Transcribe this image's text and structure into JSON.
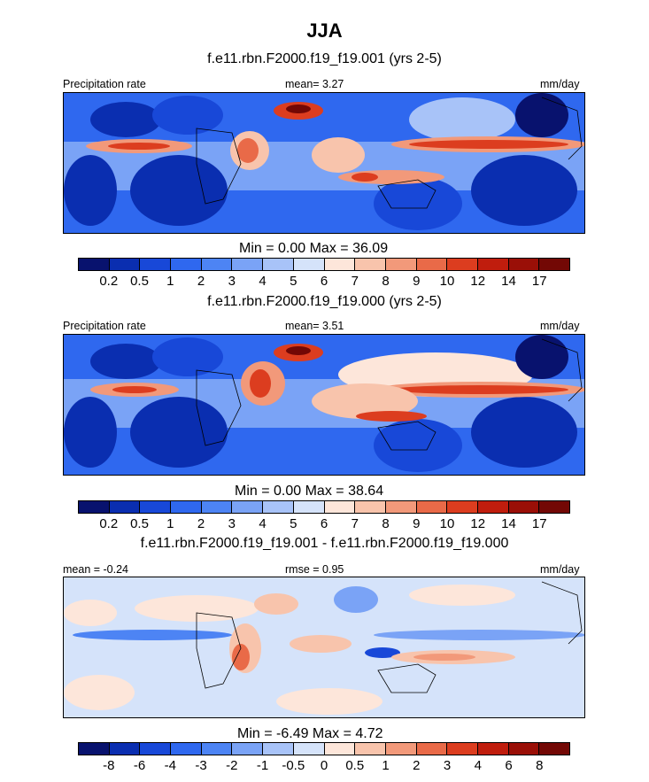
{
  "figure": {
    "title": "JJA"
  },
  "chart_data": [
    {
      "type": "heatmap",
      "subtitle": "f.e11.rbn.F2000.f19_f19.001 (yrs 2-5)",
      "left_label": "Precipitation rate",
      "center_label": "mean=   3.27",
      "right_label": "mm/day",
      "stats": "Min =   0.00 Max =  36.09",
      "levels": [
        "0.2",
        "0.5",
        "1",
        "2",
        "3",
        "4",
        "5",
        "6",
        "7",
        "8",
        "9",
        "10",
        "12",
        "14",
        "17"
      ],
      "colors": [
        "#08126e",
        "#0a2eb0",
        "#1848d8",
        "#2f68ef",
        "#4d84f4",
        "#7aa3f6",
        "#a8c3f8",
        "#d5e3fa",
        "#fde6da",
        "#f8c4ac",
        "#f2997a",
        "#e96a48",
        "#dc3d1f",
        "#c01d0d",
        "#9a0f07",
        "#730805"
      ]
    },
    {
      "type": "heatmap",
      "subtitle": "f.e11.rbn.F2000.f19_f19.000 (yrs 2-5)",
      "left_label": "Precipitation rate",
      "center_label": "mean=   3.51",
      "right_label": "mm/day",
      "stats": "Min =   0.00 Max =  38.64",
      "levels": [
        "0.2",
        "0.5",
        "1",
        "2",
        "3",
        "4",
        "5",
        "6",
        "7",
        "8",
        "9",
        "10",
        "12",
        "14",
        "17"
      ],
      "colors": [
        "#08126e",
        "#0a2eb0",
        "#1848d8",
        "#2f68ef",
        "#4d84f4",
        "#7aa3f6",
        "#a8c3f8",
        "#d5e3fa",
        "#fde6da",
        "#f8c4ac",
        "#f2997a",
        "#e96a48",
        "#dc3d1f",
        "#c01d0d",
        "#9a0f07",
        "#730805"
      ]
    },
    {
      "type": "heatmap",
      "subtitle": "f.e11.rbn.F2000.f19_f19.001 - f.e11.rbn.F2000.f19_f19.000",
      "left_label": "mean =  -0.24",
      "center_label": "rmse =   0.95",
      "right_label": "mm/day",
      "stats": "Min =  -6.49 Max =   4.72",
      "levels": [
        "-8",
        "-6",
        "-4",
        "-3",
        "-2",
        "-1",
        "-0.5",
        "0",
        "0.5",
        "1",
        "2",
        "3",
        "4",
        "6",
        "8"
      ],
      "colors": [
        "#08126e",
        "#0a2eb0",
        "#1848d8",
        "#2f68ef",
        "#4d84f4",
        "#7aa3f6",
        "#a8c3f8",
        "#d5e3fa",
        "#fde6da",
        "#f8c4ac",
        "#f2997a",
        "#e96a48",
        "#dc3d1f",
        "#c01d0d",
        "#9a0f07",
        "#730805"
      ]
    }
  ]
}
